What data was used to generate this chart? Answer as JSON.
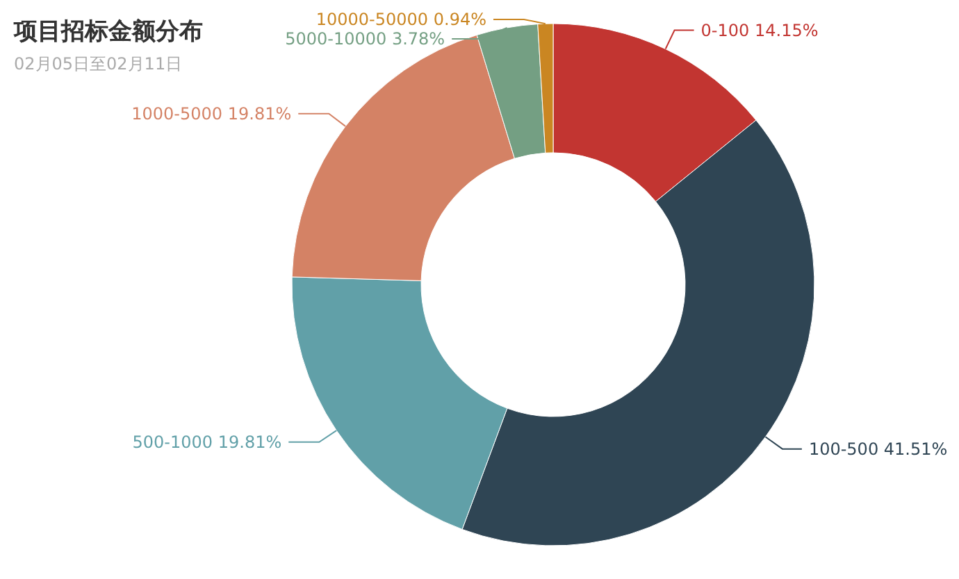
{
  "chart_data": {
    "type": "donut",
    "title": "项目招标金额分布",
    "subtitle": "02月05日至02月11日",
    "categories": [
      "0-100",
      "100-500",
      "500-1000",
      "1000-5000",
      "5000-10000",
      "10000-50000"
    ],
    "values": [
      14.15,
      41.51,
      19.81,
      19.81,
      3.78,
      0.94
    ],
    "colors": [
      "#c23531",
      "#2f4554",
      "#61a0a8",
      "#d48265",
      "#749f83",
      "#ca8622"
    ],
    "value_labels": [
      "14.15%",
      "41.51%",
      "19.81%",
      "19.81%",
      "3.78%",
      "0.94%"
    ],
    "legend": false
  }
}
